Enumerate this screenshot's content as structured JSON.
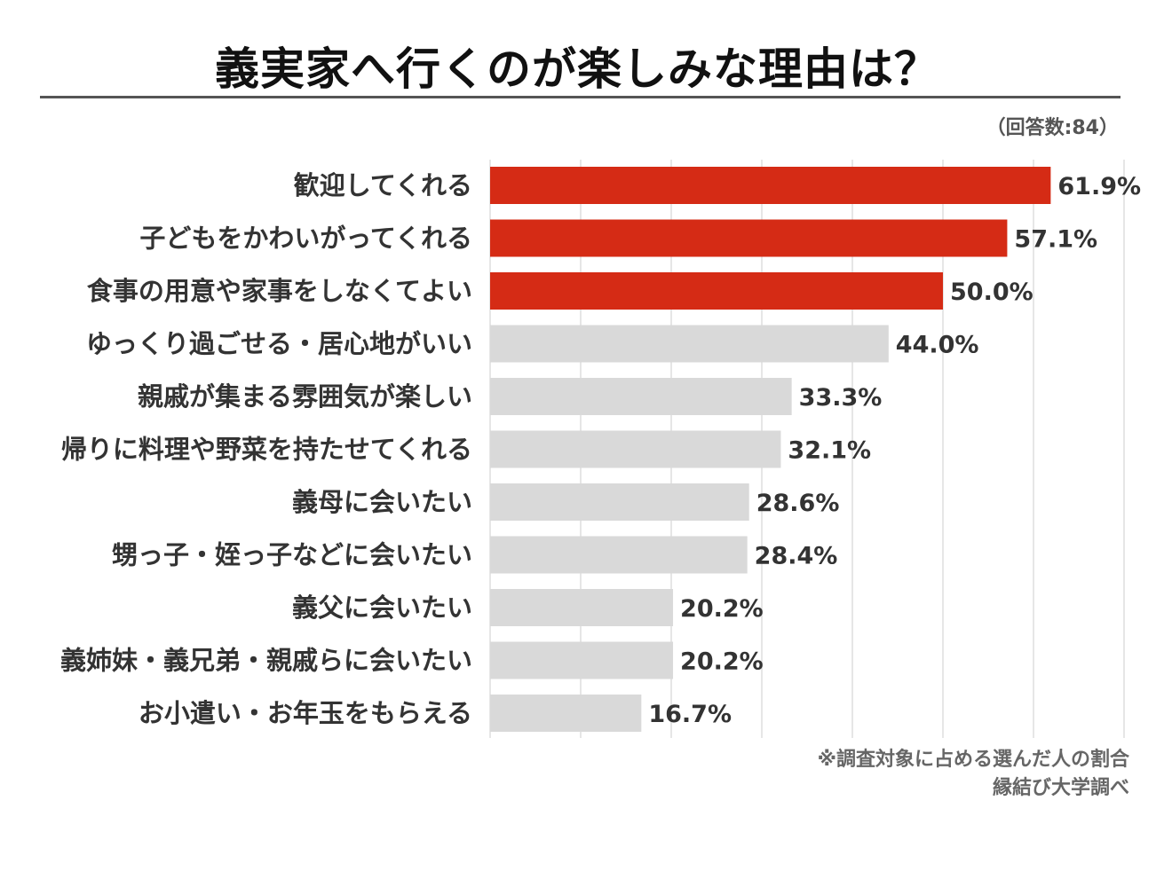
{
  "chart_data": {
    "type": "bar",
    "orientation": "horizontal",
    "title": "義実家へ行くのが楽しみな理由は？",
    "sample_note": "（回答数:84）",
    "categories": [
      "歓迎してくれる",
      "子どもをかわいがってくれる",
      "食事の用意や家事をしなくてよい",
      "ゆっくり過ごせる・居心地がいい",
      "親戚が集まる雰囲気が楽しい",
      "帰りに料理や野菜を持たせてくれる",
      "義母に会いたい",
      "甥っ子・姪っ子などに会いたい",
      "義父に会いたい",
      "義姉妹・義兄弟・親戚らに会いたい",
      "お小遣い・お年玉をもらえる"
    ],
    "values": [
      61.9,
      57.1,
      50.0,
      44.0,
      33.3,
      32.1,
      28.6,
      28.4,
      20.2,
      20.2,
      16.7
    ],
    "value_labels": [
      "61.9%",
      "57.1%",
      "50.0%",
      "44.0%",
      "33.3%",
      "32.1%",
      "28.6%",
      "28.4%",
      "20.2%",
      "20.2%",
      "16.7%"
    ],
    "highlight_top_n": 3,
    "xlim": [
      0,
      70
    ],
    "grid": true,
    "colors": {
      "highlight": "#d52b15",
      "default": "#d9d9d9",
      "grid": "#dddddd",
      "text": "#333333"
    }
  },
  "footnote": "※調査対象に占める選んだ人の割合",
  "source": "縁結び大学調べ"
}
